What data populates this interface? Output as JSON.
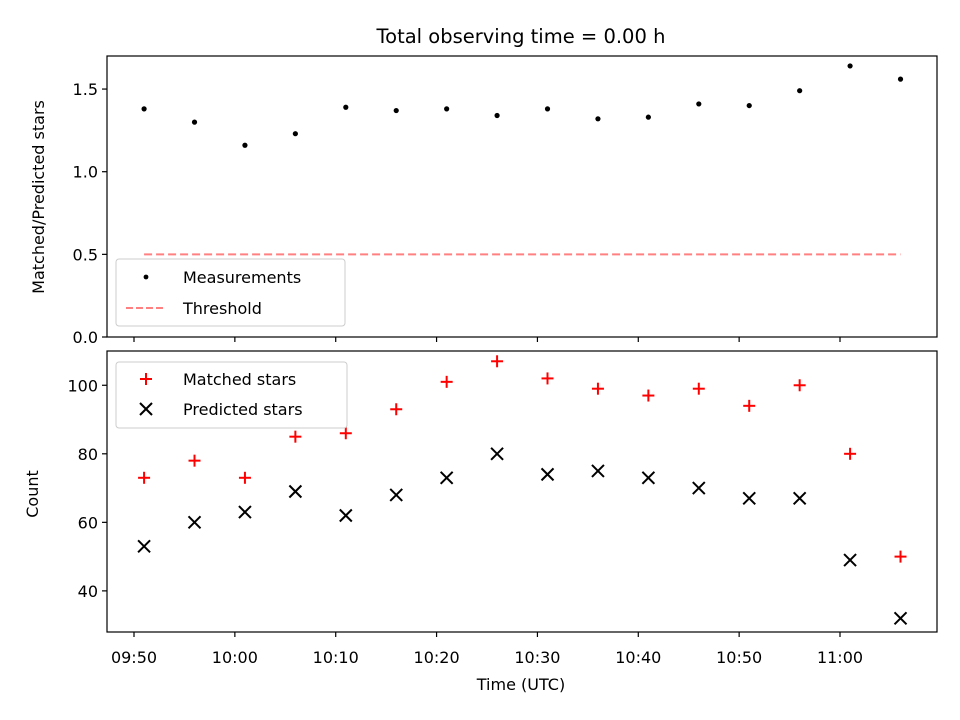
{
  "chart_data": [
    {
      "type": "scatter",
      "title": "Total observing time = 0.00 h",
      "xlabel": "",
      "ylabel": "Matched/Predicted stars",
      "ylim": [
        0,
        1.7
      ],
      "yticks": [
        "0.0",
        "0.5",
        "1.0",
        "1.5"
      ],
      "legend_position": "lower-left",
      "x": [
        "09:51",
        "09:56",
        "10:01",
        "10:06",
        "10:11",
        "10:16",
        "10:21",
        "10:26",
        "10:31",
        "10:36",
        "10:41",
        "10:46",
        "10:51",
        "10:56",
        "11:01",
        "11:06"
      ],
      "series": [
        {
          "name": "Measurements",
          "marker": "dot",
          "color": "#000000",
          "values": [
            1.38,
            1.3,
            1.16,
            1.23,
            1.39,
            1.37,
            1.38,
            1.34,
            1.38,
            1.32,
            1.33,
            1.41,
            1.4,
            1.49,
            1.64,
            1.56
          ]
        },
        {
          "name": "Threshold",
          "marker": "dashed-line",
          "color": "#ff8080",
          "values": [
            0.5,
            0.5,
            0.5,
            0.5,
            0.5,
            0.5,
            0.5,
            0.5,
            0.5,
            0.5,
            0.5,
            0.5,
            0.5,
            0.5,
            0.5,
            0.5
          ]
        }
      ]
    },
    {
      "type": "scatter",
      "title": "",
      "xlabel": "Time (UTC)",
      "ylabel": "Count",
      "ylim": [
        28,
        110
      ],
      "yticks": [
        "40",
        "60",
        "80",
        "100"
      ],
      "xticks": [
        "09:50",
        "10:00",
        "10:10",
        "10:20",
        "10:30",
        "10:40",
        "10:50",
        "11:00"
      ],
      "legend_position": "upper-left",
      "x": [
        "09:51",
        "09:56",
        "10:01",
        "10:06",
        "10:11",
        "10:16",
        "10:21",
        "10:26",
        "10:31",
        "10:36",
        "10:41",
        "10:46",
        "10:51",
        "10:56",
        "11:01",
        "11:06"
      ],
      "series": [
        {
          "name": "Matched stars",
          "marker": "plus",
          "color": "#ff0000",
          "values": [
            73,
            78,
            73,
            85,
            86,
            93,
            101,
            107,
            102,
            99,
            97,
            99,
            94,
            100,
            80,
            50
          ]
        },
        {
          "name": "Predicted stars",
          "marker": "x",
          "color": "#000000",
          "values": [
            53,
            60,
            63,
            69,
            62,
            68,
            73,
            80,
            74,
            75,
            73,
            70,
            67,
            67,
            49,
            32
          ]
        }
      ]
    }
  ]
}
